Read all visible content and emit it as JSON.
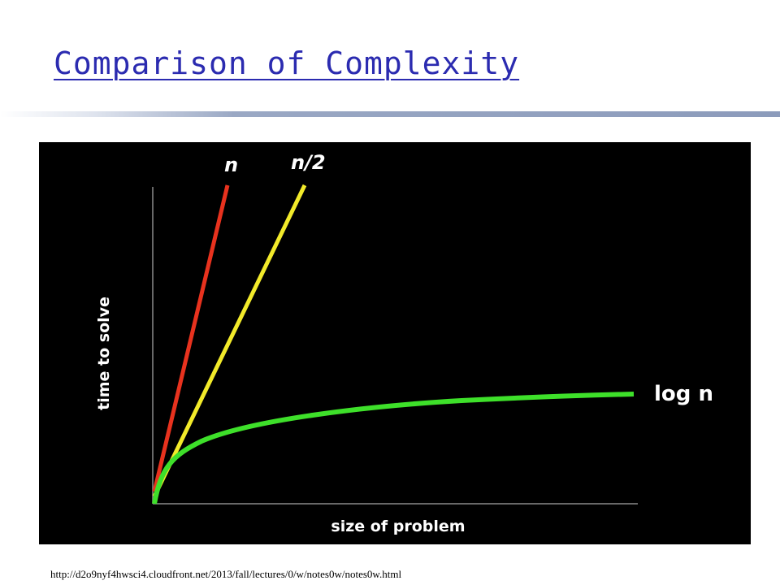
{
  "header": {
    "title": "Comparison of Complexity"
  },
  "figure": {
    "labels": {
      "n": "n",
      "n_half": "n/2",
      "log_n": "log n"
    },
    "y_label": "time to solve",
    "x_label": "size of problem"
  },
  "footer": {
    "source": "http://d2o9nyf4hwsci4.cloudfront.net/2013/fall/lectures/0/w/notes0w/notes0w.html"
  }
}
